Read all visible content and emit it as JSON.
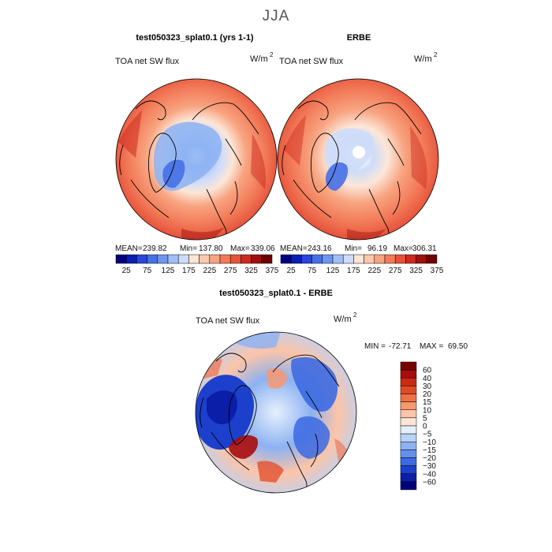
{
  "title": "JJA",
  "chart_data": [
    {
      "type": "heatmap",
      "panel_title": "test050323_splat0.1 (yrs 1-1)",
      "variable_label": "TOA net SW flux",
      "unit_base": "W/m",
      "unit_exp": "2",
      "stats": {
        "mean_label": "MEAN=",
        "mean": "239.82",
        "min_label": "Min=",
        "min": "137.80",
        "max_label": "Max=",
        "max": "339.06"
      },
      "colorbar": {
        "levels": [
          "25",
          "75",
          "125",
          "175",
          "225",
          "275",
          "325",
          "375"
        ],
        "colors": [
          "#00007f",
          "#0a1eb4",
          "#2846dc",
          "#4670e6",
          "#6e96f0",
          "#a0bef8",
          "#cddcfa",
          "#fce6d8",
          "#fcc8ac",
          "#f8a480",
          "#f27a58",
          "#e6523a",
          "#cc2a1e",
          "#a0100c",
          "#6e0000"
        ]
      }
    },
    {
      "type": "heatmap",
      "panel_title": "ERBE",
      "variable_label": "TOA net SW flux",
      "unit_base": "W/m",
      "unit_exp": "2",
      "stats": {
        "mean_label": "MEAN=",
        "mean": "243.16",
        "min_label": "Min=",
        "min": "96.19",
        "max_label": "Max=",
        "max": "306.31"
      },
      "colorbar": {
        "levels": [
          "25",
          "75",
          "125",
          "175",
          "225",
          "275",
          "325",
          "375"
        ],
        "colors": [
          "#00007f",
          "#0a1eb4",
          "#2846dc",
          "#4670e6",
          "#6e96f0",
          "#a0bef8",
          "#cddcfa",
          "#fce6d8",
          "#fcc8ac",
          "#f8a480",
          "#f27a58",
          "#e6523a",
          "#cc2a1e",
          "#a0100c",
          "#6e0000"
        ]
      }
    },
    {
      "type": "heatmap",
      "panel_title": "test050323_splat0.1 - ERBE",
      "variable_label": "TOA net SW flux",
      "unit_base": "W/m",
      "unit_exp": "2",
      "stats": {
        "min_label": "MIN =",
        "min": "-72.71",
        "max_label": "MAX =",
        "max": "69.50"
      },
      "colorbar": {
        "levels": [
          "60",
          "40",
          "30",
          "20",
          "15",
          "10",
          "5",
          "0",
          "-5",
          "-10",
          "-15",
          "-20",
          "-30",
          "-40",
          "-60"
        ],
        "colors": [
          "#7a0000",
          "#a80c0c",
          "#cc2a14",
          "#e24a26",
          "#f07048",
          "#f89870",
          "#fcc4a8",
          "#fde6d8",
          "#e6f0fc",
          "#b8d2f8",
          "#8cb2f2",
          "#6490ea",
          "#3c6ae2",
          "#1c40cc",
          "#0a1ea8",
          "#00007a"
        ]
      }
    }
  ]
}
